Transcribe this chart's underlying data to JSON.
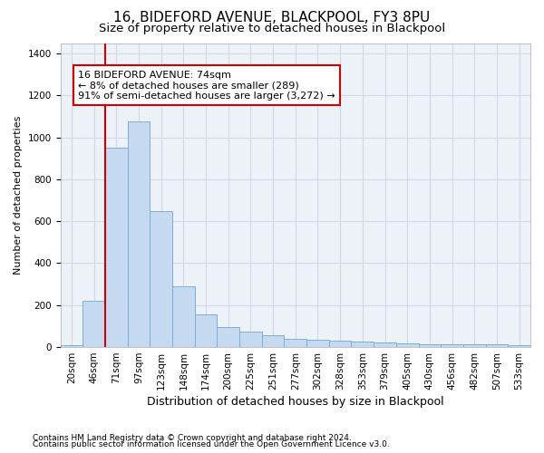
{
  "title1": "16, BIDEFORD AVENUE, BLACKPOOL, FY3 8PU",
  "title2": "Size of property relative to detached houses in Blackpool",
  "xlabel": "Distribution of detached houses by size in Blackpool",
  "ylabel": "Number of detached properties",
  "categories": [
    "20sqm",
    "46sqm",
    "71sqm",
    "97sqm",
    "123sqm",
    "148sqm",
    "174sqm",
    "200sqm",
    "225sqm",
    "251sqm",
    "277sqm",
    "302sqm",
    "328sqm",
    "353sqm",
    "379sqm",
    "405sqm",
    "430sqm",
    "456sqm",
    "482sqm",
    "507sqm",
    "533sqm"
  ],
  "values": [
    10,
    220,
    950,
    1075,
    650,
    290,
    155,
    95,
    75,
    55,
    40,
    35,
    30,
    27,
    22,
    18,
    14,
    14,
    14,
    14,
    7
  ],
  "bar_color": "#c5d9f0",
  "bar_edge_color": "#7bafd4",
  "bg_color": "#edf2f9",
  "grid_color": "#d0d8e8",
  "vline_x_idx": 1.5,
  "vline_color": "#cc0000",
  "annotation_text": "16 BIDEFORD AVENUE: 74sqm\n← 8% of detached houses are smaller (289)\n91% of semi-detached houses are larger (3,272) →",
  "annotation_box_color": "white",
  "annotation_box_edge": "#cc0000",
  "footnote1": "Contains HM Land Registry data © Crown copyright and database right 2024.",
  "footnote2": "Contains public sector information licensed under the Open Government Licence v3.0.",
  "ylim": [
    0,
    1450
  ],
  "title1_fontsize": 11,
  "title2_fontsize": 9.5,
  "xlabel_fontsize": 9,
  "ylabel_fontsize": 8,
  "tick_fontsize": 7.5,
  "annot_fontsize": 8
}
